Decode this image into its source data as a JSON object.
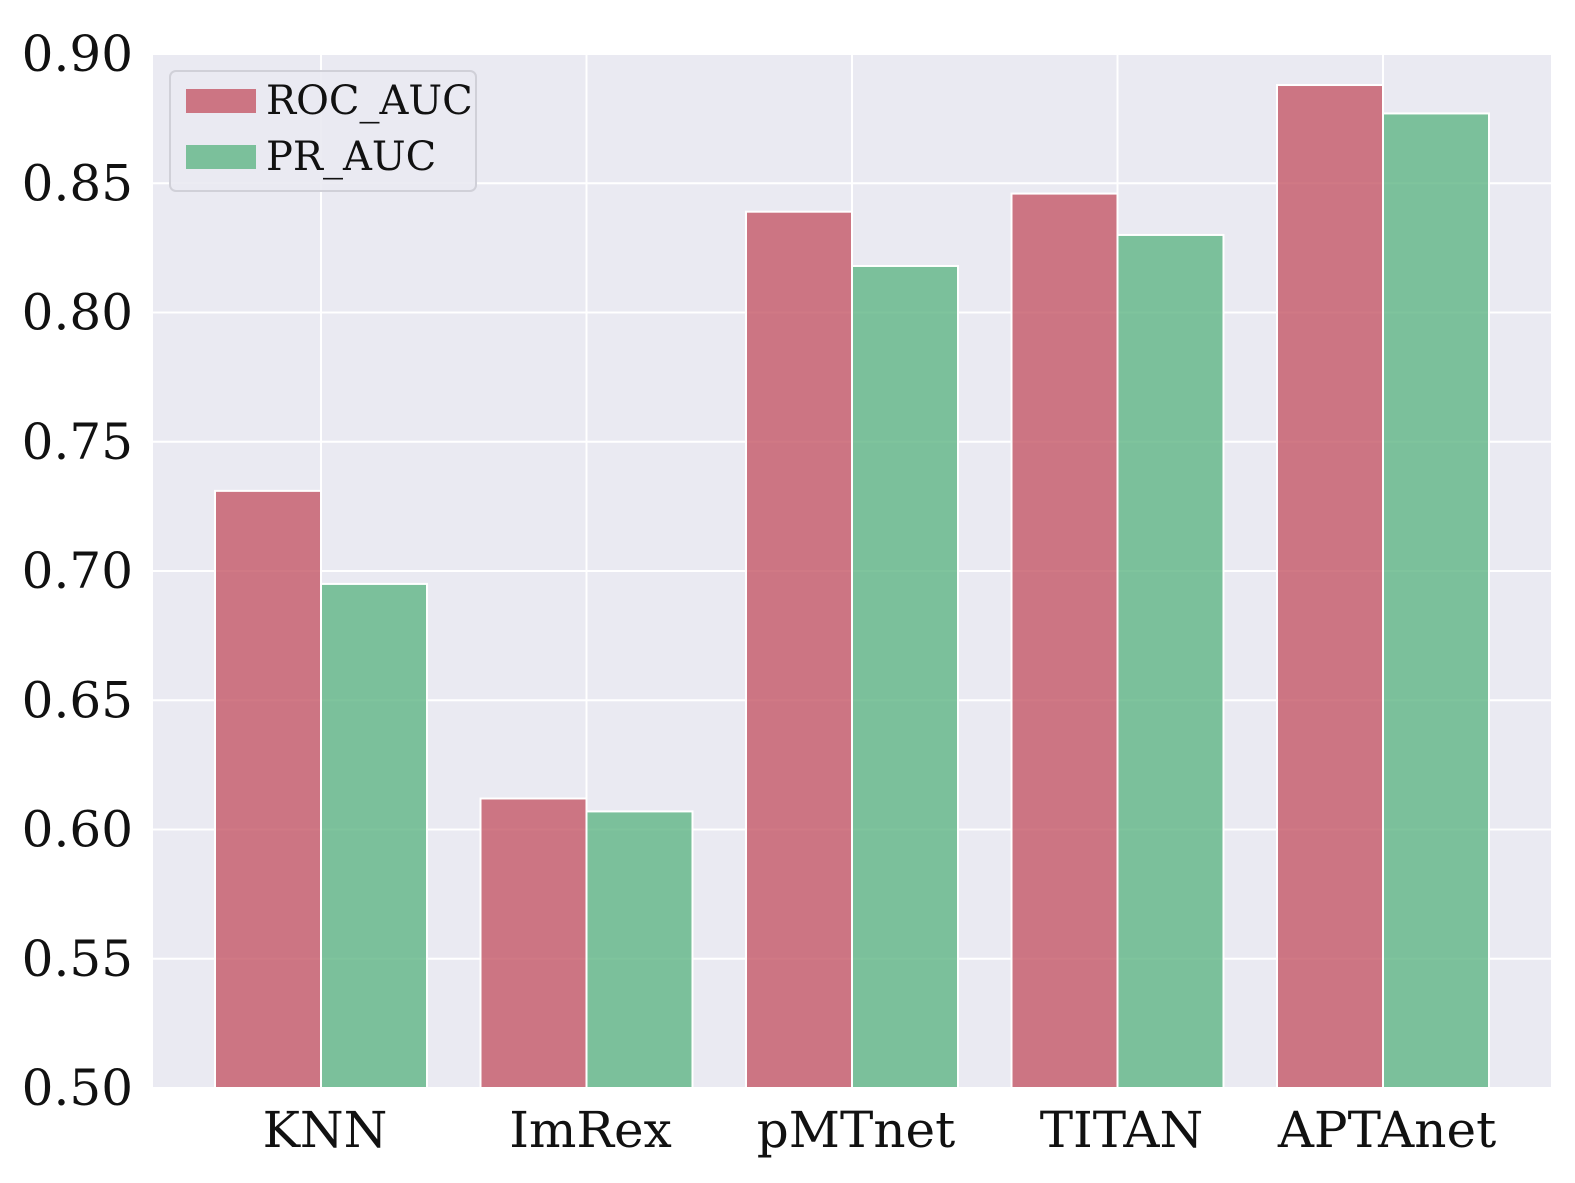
{
  "chart_data": {
    "type": "bar",
    "title": "",
    "xlabel": "",
    "ylabel": "",
    "categories": [
      "KNN",
      "ImRex",
      "pMTnet",
      "TITAN",
      "APTAnet"
    ],
    "series": [
      {
        "name": "ROC_AUC",
        "color": "#c45867",
        "values": [
          0.731,
          0.612,
          0.839,
          0.846,
          0.888
        ]
      },
      {
        "name": "PR_AUC",
        "color": "#5fb585",
        "values": [
          0.695,
          0.607,
          0.818,
          0.83,
          0.877
        ]
      }
    ],
    "ylim": [
      0.5,
      0.9
    ],
    "yticks": [
      "0.50",
      "0.55",
      "0.60",
      "0.65",
      "0.70",
      "0.75",
      "0.80",
      "0.85",
      "0.90"
    ],
    "grid": true,
    "legend_position": "top-left",
    "colors": {
      "plot_background": "#eaeaf2",
      "grid": "#ffffff"
    }
  }
}
